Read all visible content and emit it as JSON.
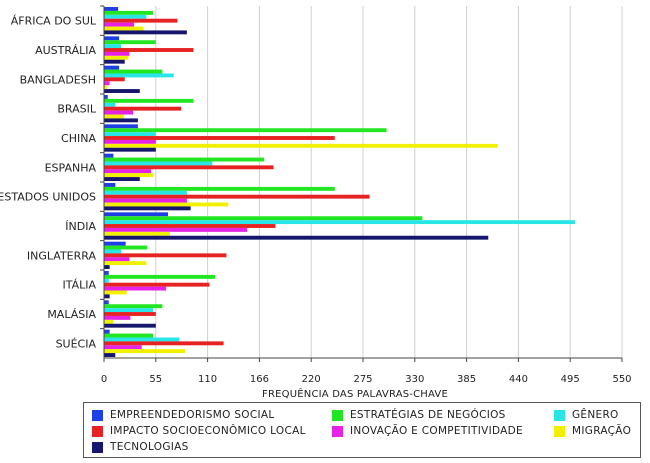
{
  "chart_data": {
    "type": "bar",
    "orientation": "horizontal",
    "categories": [
      "ÁFRICA DO SUL",
      "AUSTRÁLIA",
      "BANGLADESH",
      "BRASIL",
      "CHINA",
      "ESPANHA",
      "ESTADOS UNIDOS",
      "ÍNDIA",
      "INGLATERRA",
      "ITÁLIA",
      "MALÁSIA",
      "SUÉCIA"
    ],
    "series": [
      {
        "name": "EMPREENDEDORISMO SOCIAL",
        "color": "#1f3fe6",
        "values": [
          15,
          16,
          16,
          4,
          36,
          10,
          12,
          68,
          23,
          5,
          5,
          6
        ]
      },
      {
        "name": "ESTRATÉGIAS DE NEGÓCIOS",
        "color": "#22e622",
        "values": [
          52,
          55,
          62,
          95,
          300,
          170,
          245,
          338,
          46,
          118,
          62,
          52
        ]
      },
      {
        "name": "GÊNERO",
        "color": "#28e6e6",
        "values": [
          45,
          18,
          74,
          12,
          55,
          115,
          88,
          500,
          18,
          5,
          52,
          80
        ]
      },
      {
        "name": "IMPACTO SOCIOECONÔMICO LOCAL",
        "color": "#e62222",
        "values": [
          78,
          95,
          22,
          82,
          245,
          180,
          282,
          182,
          130,
          112,
          55,
          127
        ]
      },
      {
        "name": "INOVAÇÃO E COMPETITIVIDADE",
        "color": "#e622e6",
        "values": [
          32,
          27,
          6,
          31,
          55,
          50,
          88,
          152,
          27,
          66,
          28,
          40
        ]
      },
      {
        "name": "MIGRAÇÃO",
        "color": "#f0f000",
        "values": [
          42,
          26,
          3,
          21,
          418,
          52,
          132,
          70,
          45,
          24,
          10,
          86
        ]
      },
      {
        "name": "TECNOLOGIAS",
        "color": "#16166e",
        "values": [
          88,
          22,
          38,
          36,
          55,
          38,
          92,
          408,
          6,
          6,
          55,
          12
        ]
      }
    ],
    "xlim": [
      0,
      550
    ],
    "xticks": [
      "0",
      "55",
      "110",
      "166",
      "220",
      "275",
      "330",
      "385",
      "440",
      "495",
      "550"
    ],
    "xlabel": "FREQUÊNCIA DAS PALAVRAS-CHAVE",
    "grid": "vertical",
    "legend_position": "bottom"
  },
  "legend": {
    "items": [
      {
        "label": "EMPREENDEDORISMO SOCIAL",
        "color": "#1f3fe6"
      },
      {
        "label": "ESTRATÉGIAS DE NEGÓCIOS",
        "color": "#22e622"
      },
      {
        "label": "GÊNERO",
        "color": "#28e6e6"
      },
      {
        "label": "IMPACTO SOCIOECONÔMICO LOCAL",
        "color": "#e62222"
      },
      {
        "label": "INOVAÇÃO E COMPETITIVIDADE",
        "color": "#e622e6"
      },
      {
        "label": "MIGRAÇÃO",
        "color": "#f0f000"
      },
      {
        "label": "TECNOLOGIAS",
        "color": "#16166e"
      }
    ]
  }
}
